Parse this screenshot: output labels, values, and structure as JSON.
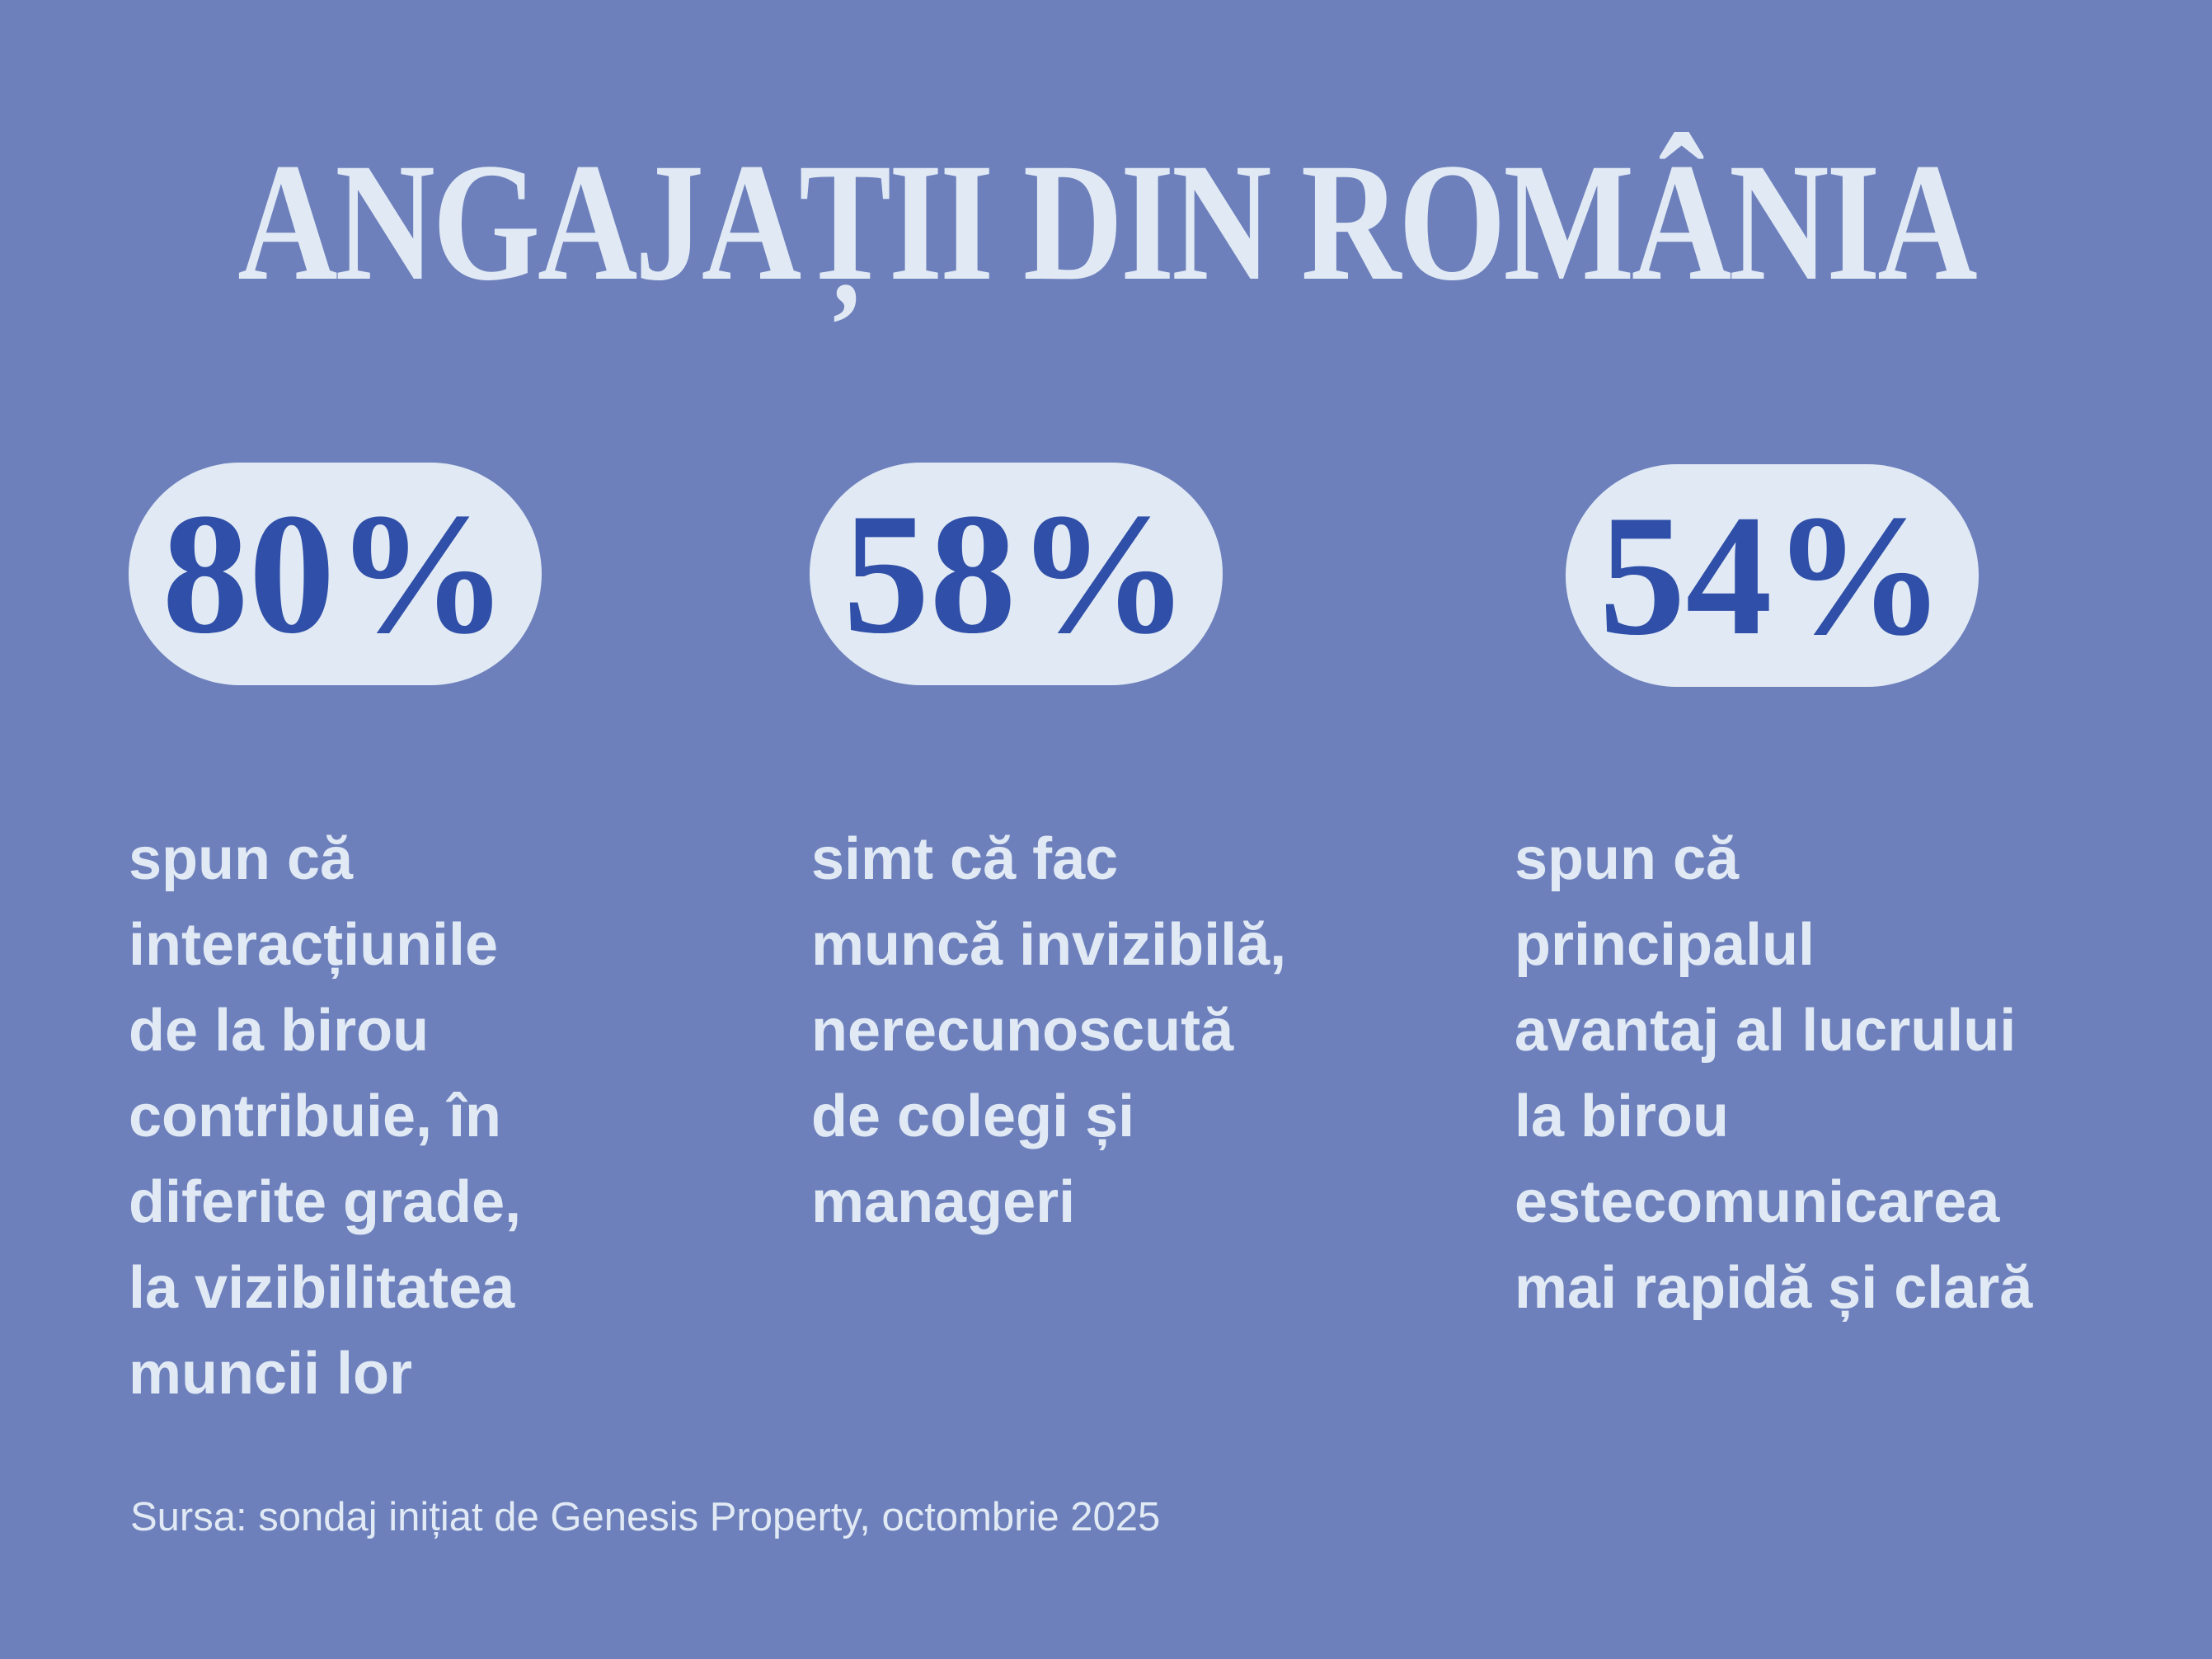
{
  "title": "ANGAJAȚII DIN ROMÂNIA",
  "colors": {
    "background": "#6d80bc",
    "pill": "#e1eaf4",
    "number": "#2f4fa8",
    "text": "#e1eaf4"
  },
  "stats": [
    {
      "value": "80%",
      "lines": [
        "spun că",
        "interacțiunile",
        "de la birou",
        "contribuie, în",
        "diferite grade,",
        "la vizibilitatea",
        "muncii lor"
      ]
    },
    {
      "value": "58%",
      "lines": [
        "simt că fac",
        "muncă invizibilă,",
        "nerecunoscută",
        "de colegi și",
        "manageri"
      ]
    },
    {
      "value": "54%",
      "lines": [
        "spun că",
        "principalul",
        "avantaj al lucrului",
        "la birou",
        "estecomunicarea",
        "mai rapidă și clară"
      ]
    }
  ],
  "source": "Sursa: sondaj inițiat de Genesis Property, octombrie 2025"
}
